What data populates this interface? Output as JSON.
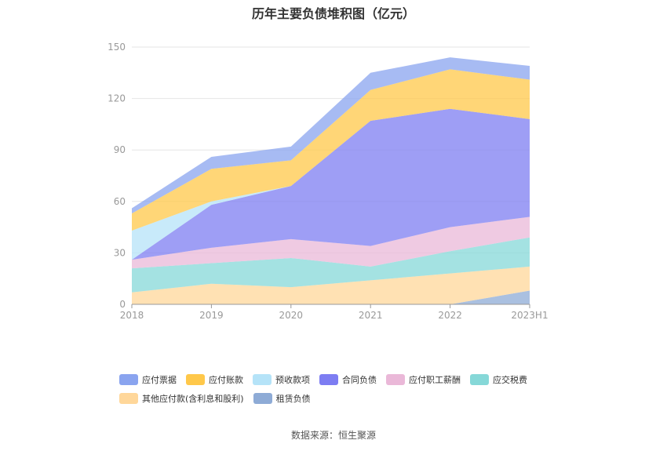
{
  "chart_data": {
    "type": "area",
    "stacked": true,
    "title": "历年主要负债堆积图（亿元）",
    "categories": [
      "2018",
      "2019",
      "2020",
      "2021",
      "2022",
      "2023H1"
    ],
    "ylim": [
      0,
      150
    ],
    "yticks": [
      "0",
      "30",
      "60",
      "90",
      "120",
      "150"
    ],
    "grid": true,
    "legend_position": "bottom",
    "series": [
      {
        "name": "租赁负债",
        "color": "#8eabd6",
        "values": [
          0,
          0,
          0,
          0,
          0,
          8
        ]
      },
      {
        "name": "其他应付款(含利息和股利)",
        "color": "#ffd79a",
        "values": [
          7,
          12,
          10,
          14,
          18,
          14
        ]
      },
      {
        "name": "应交税费",
        "color": "#86d8d8",
        "values": [
          14,
          12,
          17,
          8,
          13,
          17
        ]
      },
      {
        "name": "应付职工薪酬",
        "color": "#eab8d8",
        "values": [
          5,
          9,
          11,
          12,
          14,
          12
        ]
      },
      {
        "name": "合同负债",
        "color": "#7d7df2",
        "values": [
          0,
          25,
          31,
          73,
          69,
          57
        ]
      },
      {
        "name": "预收款项",
        "color": "#b5e3f8",
        "values": [
          17,
          2,
          0,
          0,
          0,
          0
        ]
      },
      {
        "name": "应付账款",
        "color": "#ffc84a",
        "values": [
          10,
          19,
          15,
          18,
          23,
          23
        ]
      },
      {
        "name": "应付票据",
        "color": "#8aa4ef",
        "values": [
          3,
          7,
          8,
          10,
          7,
          8
        ]
      }
    ]
  },
  "legend": [
    {
      "label": "应付票据",
      "color": "#8aa4ef"
    },
    {
      "label": "应付账款",
      "color": "#ffc84a"
    },
    {
      "label": "预收款项",
      "color": "#b5e3f8"
    },
    {
      "label": "合同负债",
      "color": "#7d7df2"
    },
    {
      "label": "应付职工薪酬",
      "color": "#eab8d8"
    },
    {
      "label": "应交税费",
      "color": "#86d8d8"
    },
    {
      "label": "其他应付款(含利息和股利)",
      "color": "#ffd79a"
    },
    {
      "label": "租赁负债",
      "color": "#8eabd6"
    }
  ],
  "source": "数据来源：恒生聚源"
}
